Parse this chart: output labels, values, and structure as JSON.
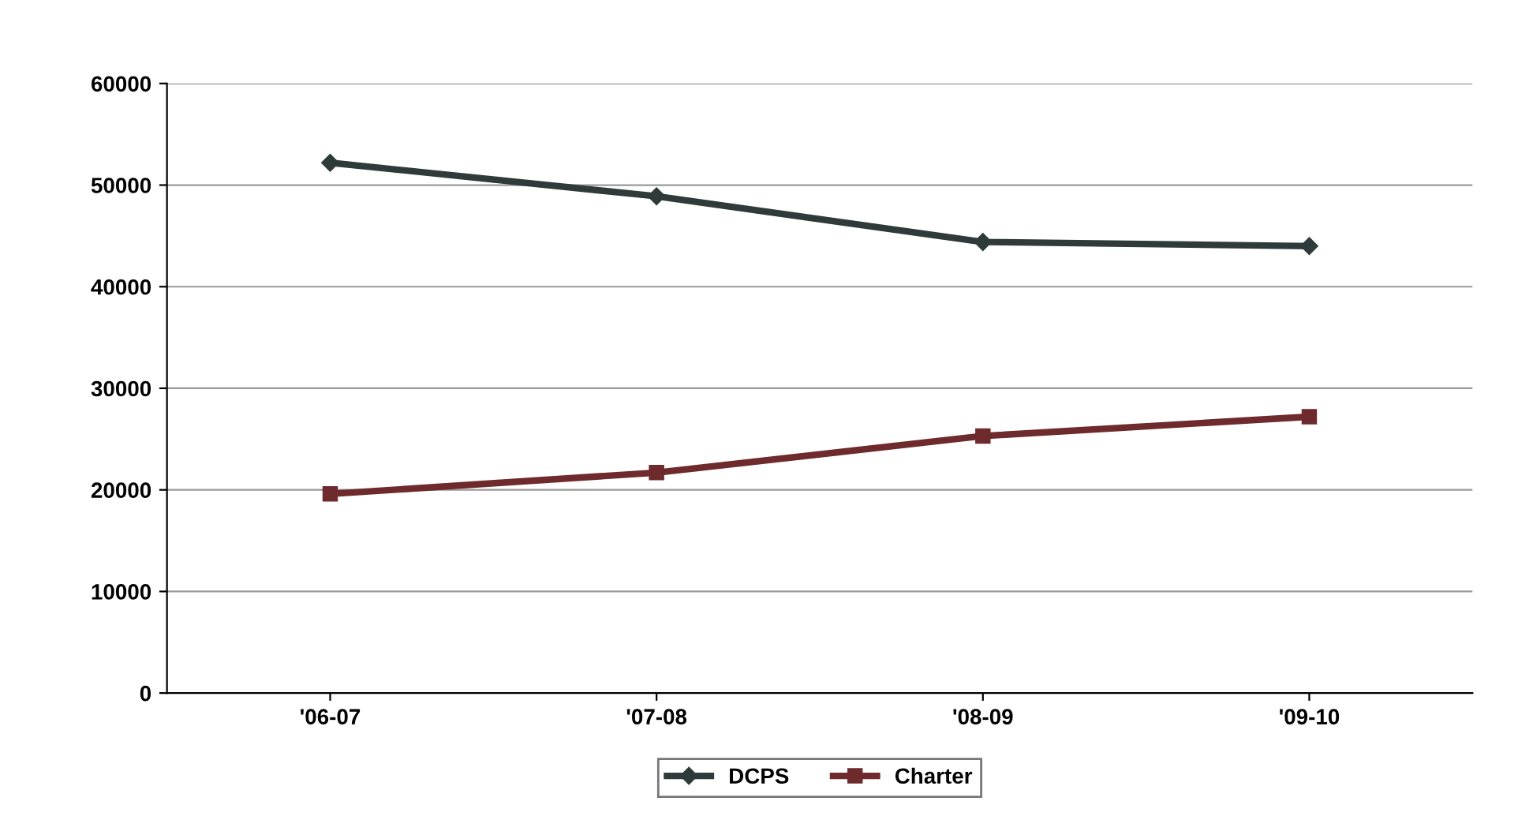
{
  "chart_data": {
    "type": "line",
    "categories": [
      "'06-07",
      "'07-08",
      "'08-09",
      "'09-10"
    ],
    "series": [
      {
        "name": "DCPS",
        "color": "#2f3b3a",
        "marker": "diamond",
        "values": [
          52200,
          48900,
          44400,
          44000
        ]
      },
      {
        "name": "Charter",
        "color": "#6e2a2c",
        "marker": "square",
        "values": [
          19600,
          21700,
          25300,
          27200
        ]
      }
    ],
    "ylim": [
      0,
      60000
    ],
    "yticks": [
      0,
      10000,
      20000,
      30000,
      40000,
      50000,
      60000
    ],
    "grid": "y",
    "legend": "bottom",
    "line_style": "solid"
  }
}
